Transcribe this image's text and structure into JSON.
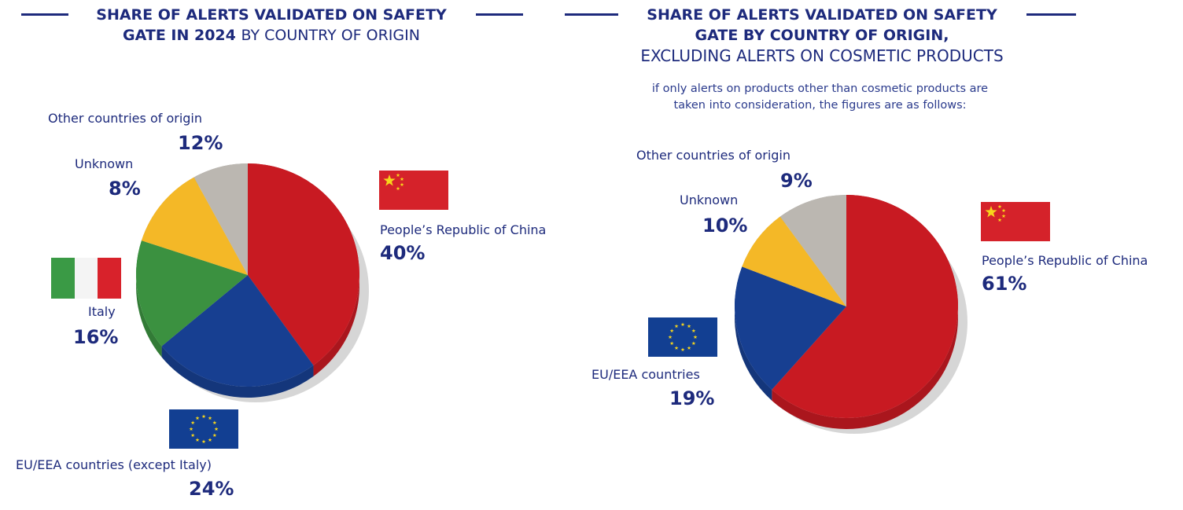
{
  "chart_data": [
    {
      "type": "pie",
      "title_bold": "SHARE OF ALERTS VALIDATED ON SAFETY GATE IN 2024",
      "title_regular": "BY COUNTRY OF ORIGIN",
      "slices": [
        {
          "label": "People’s Republic of China",
          "value": 40,
          "display": "40%",
          "color": "#c81a22"
        },
        {
          "label": "EU/EEA countries (except Italy)",
          "value": 24,
          "display": "24%",
          "color": "#173f91"
        },
        {
          "label": "Italy",
          "value": 16,
          "display": "16%",
          "color": "#3b9140"
        },
        {
          "label": "Other countries of origin",
          "value": 12,
          "display": "12%",
          "color": "#f4b827"
        },
        {
          "label": "Unknown",
          "value": 8,
          "display": "8%",
          "color": "#bbb7b1"
        }
      ]
    },
    {
      "type": "pie",
      "title_bold_1": "SHARE OF ALERTS VALIDATED ON SAFETY",
      "title_bold_2": "GATE BY COUNTRY OF ORIGIN,",
      "title_regular": "EXCLUDING ALERTS ON COSMETIC PRODUCTS",
      "note_1": "if only alerts on products other than cosmetic products are",
      "note_2": "taken into consideration, the figures are as follows:",
      "slices": [
        {
          "label": "People’s Republic of China",
          "value": 61,
          "display": "61%",
          "color": "#c81a22"
        },
        {
          "label": "EU/EEA countries",
          "value": 19,
          "display": "19%",
          "color": "#173f91"
        },
        {
          "label": "Other countries of origin",
          "value": 9,
          "display": "9%",
          "color": "#f4b827"
        },
        {
          "label": "Unknown",
          "value": 10,
          "display": "10%",
          "color": "#bbb7b1"
        }
      ]
    }
  ],
  "flags": [
    "china-flag",
    "italy-flag",
    "eu-flag"
  ]
}
